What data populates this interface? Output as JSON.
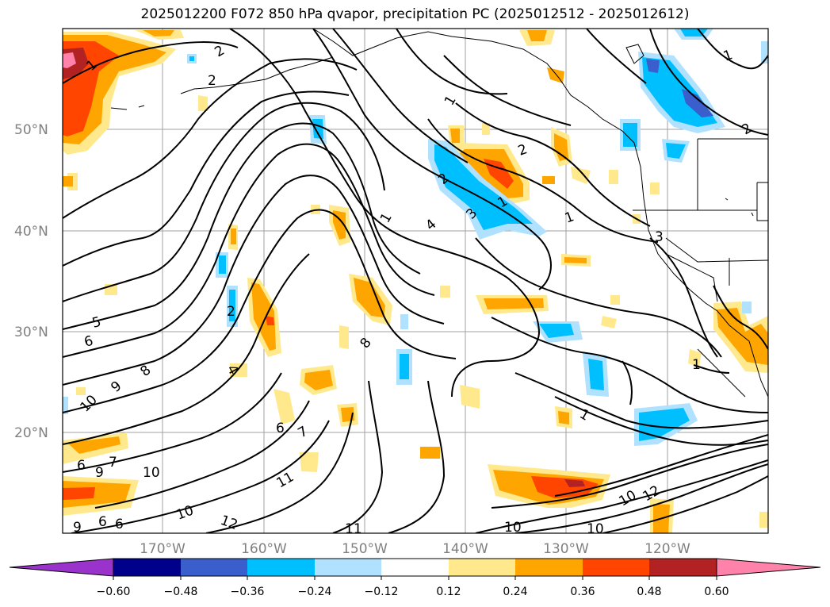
{
  "title": "2025012200 F072 850 hPa qvapor, precipitation PC (2025012512 - 2025012612)",
  "map": {
    "lat_labels": [
      "50°N",
      "40°N",
      "30°N",
      "20°N"
    ],
    "lon_labels": [
      "170°W",
      "160°W",
      "150°W",
      "140°W",
      "130°W",
      "120°W"
    ],
    "contour_labels": [
      "1",
      "2",
      "2",
      "1",
      "1",
      "2",
      "4",
      "3",
      "2",
      "1",
      "1",
      "3",
      "1",
      "1",
      "1",
      "2",
      "2",
      "5",
      "6",
      "8",
      "8",
      "9",
      "10",
      "4",
      "6",
      "7",
      "11",
      "6",
      "7",
      "9",
      "10",
      "10",
      "12",
      "6",
      "6",
      "9",
      "11",
      "10",
      "10",
      "12",
      "10"
    ]
  },
  "colorbar": {
    "ticks": [
      "−0.60",
      "−0.48",
      "−0.36",
      "−0.24",
      "−0.12",
      "0.12",
      "0.24",
      "0.36",
      "0.48",
      "0.60"
    ],
    "colors": [
      "#9933cc",
      "#00008b",
      "#3a5fcd",
      "#00bfff",
      "#b0e2ff",
      "#ffffff",
      "#ffe98c",
      "#ffa500",
      "#ff4500",
      "#b22222",
      "#ff82ab"
    ]
  }
}
